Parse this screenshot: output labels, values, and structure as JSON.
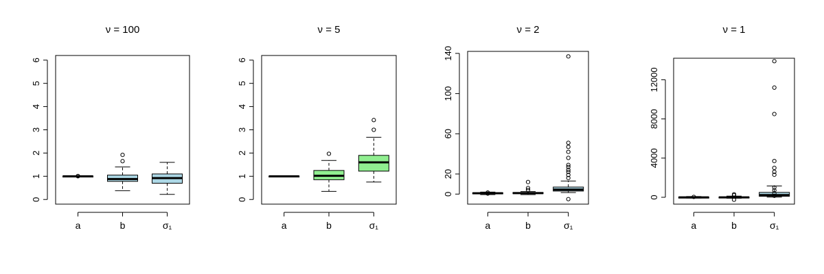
{
  "chart_data": [
    {
      "type": "box",
      "title": "ν = 100",
      "categories": [
        "a",
        "b",
        "σ₁"
      ],
      "yticks": [
        "0",
        "1",
        "2",
        "3",
        "4",
        "5",
        "6"
      ],
      "ylim": [
        -0.2,
        6.2
      ],
      "fill": "#add8e6",
      "boxes": [
        {
          "name": "a",
          "whisker_low": 0.98,
          "q1": 0.99,
          "median": 1.0,
          "q3": 1.01,
          "whisker_high": 1.02,
          "outliers": [
            1.0,
            1.01
          ]
        },
        {
          "name": "b",
          "whisker_low": 0.38,
          "q1": 0.78,
          "median": 0.88,
          "q3": 1.05,
          "whisker_high": 1.4,
          "outliers": [
            1.65,
            1.92
          ]
        },
        {
          "name": "σ₁",
          "whisker_low": 0.22,
          "q1": 0.7,
          "median": 0.92,
          "q3": 1.1,
          "whisker_high": 1.6,
          "outliers": []
        }
      ]
    },
    {
      "type": "box",
      "title": "ν = 5",
      "categories": [
        "a",
        "b",
        "σ₁"
      ],
      "yticks": [
        "0",
        "1",
        "2",
        "3",
        "4",
        "5",
        "6"
      ],
      "ylim": [
        -0.2,
        6.2
      ],
      "fill": "#90ee90",
      "boxes": [
        {
          "name": "a",
          "whisker_low": 0.98,
          "q1": 0.99,
          "median": 1.0,
          "q3": 1.01,
          "whisker_high": 1.02,
          "outliers": []
        },
        {
          "name": "b",
          "whisker_low": 0.35,
          "q1": 0.85,
          "median": 1.02,
          "q3": 1.25,
          "whisker_high": 1.68,
          "outliers": [
            1.97
          ]
        },
        {
          "name": "σ₁",
          "whisker_low": 0.75,
          "q1": 1.22,
          "median": 1.6,
          "q3": 1.9,
          "whisker_high": 2.68,
          "outliers": [
            3.0,
            3.42
          ]
        }
      ]
    },
    {
      "type": "box",
      "title": "ν = 2",
      "categories": [
        "a",
        "b",
        "σ₁"
      ],
      "yticks": [
        "0",
        "20",
        "60",
        "100",
        "140"
      ],
      "ylim": [
        -10,
        142
      ],
      "fill": "#add8e6",
      "boxes": [
        {
          "name": "a",
          "whisker_low": -0.5,
          "q1": 0.3,
          "median": 0.8,
          "q3": 1.3,
          "whisker_high": 2.0,
          "outliers": [
            0.5,
            1.5
          ]
        },
        {
          "name": "b",
          "whisker_low": -0.5,
          "q1": 0.4,
          "median": 1.0,
          "q3": 1.6,
          "whisker_high": 2.5,
          "outliers": [
            4.0,
            6.0,
            12.0
          ]
        },
        {
          "name": "σ₁",
          "whisker_low": 1.5,
          "q1": 3.0,
          "median": 4.5,
          "q3": 7.0,
          "whisker_high": 13.0,
          "outliers": [
            -5,
            16,
            19,
            22,
            24,
            27,
            29,
            36,
            42,
            47,
            51,
            137
          ]
        }
      ]
    },
    {
      "type": "box",
      "title": "ν = 1",
      "categories": [
        "a",
        "b",
        "σ₁"
      ],
      "yticks": [
        "0",
        "4000",
        "8000",
        "12000"
      ],
      "ylim": [
        -700,
        14200
      ],
      "fill": "#add8e6",
      "boxes": [
        {
          "name": "a",
          "whisker_low": -80,
          "q1": -30,
          "median": -5,
          "q3": 20,
          "whisker_high": 80,
          "outliers": [
            40
          ]
        },
        {
          "name": "b",
          "whisker_low": -100,
          "q1": -40,
          "median": -10,
          "q3": 30,
          "whisker_high": 120,
          "outliers": [
            -250,
            200,
            300
          ]
        },
        {
          "name": "σ₁",
          "whisker_low": 20,
          "q1": 100,
          "median": 230,
          "q3": 500,
          "whisker_high": 1150,
          "outliers": [
            150,
            400,
            700,
            1000,
            2300,
            2600,
            3000,
            3700,
            8500,
            11200,
            13900
          ]
        }
      ]
    }
  ]
}
